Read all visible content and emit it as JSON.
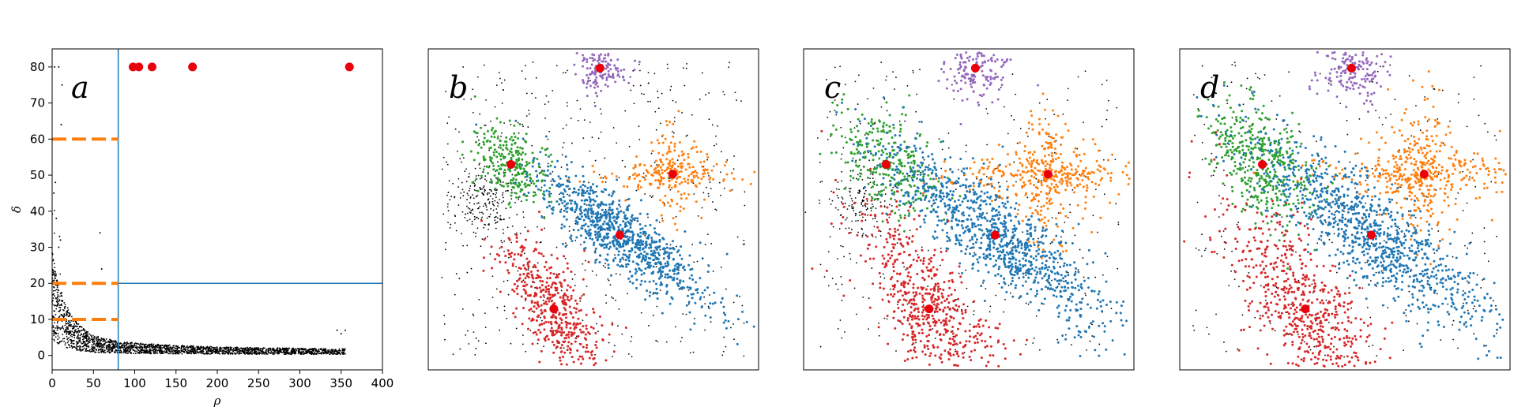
{
  "chart_data": [
    {
      "type": "scatter",
      "panel_label": "a",
      "xlabel": "ρ",
      "ylabel": "δ",
      "xlim": [
        0,
        400
      ],
      "ylim": [
        -4,
        85
      ],
      "xticks": [
        0,
        50,
        100,
        150,
        200,
        250,
        300,
        350,
        400
      ],
      "yticks": [
        0,
        10,
        20,
        30,
        40,
        50,
        60,
        70,
        80
      ],
      "grid": false,
      "series": [
        {
          "role": "cluster-centers",
          "color": "#e8000b",
          "points": [
            [
              98,
              80
            ],
            [
              105,
              80
            ],
            [
              121,
              80
            ],
            [
              170,
              80
            ],
            [
              360,
              80
            ]
          ]
        },
        {
          "role": "data-points",
          "color": "#000000",
          "description_shape": "dense band decaying from delta~20 at rho~0 to delta~1 at rho~355"
        }
      ],
      "reference_lines": [
        {
          "orientation": "vertical",
          "x": 80,
          "color": "#1f77b4"
        },
        {
          "orientation": "horizontal",
          "y": 20,
          "x_from": 80,
          "x_to": 400,
          "color": "#1f77b4"
        }
      ],
      "threshold_markers": [
        {
          "y": 60,
          "x_from": 0,
          "x_to": 80,
          "color": "#ff7f0e",
          "style": "dashed"
        },
        {
          "y": 20,
          "x_from": 0,
          "x_to": 80,
          "color": "#ff7f0e",
          "style": "dashed"
        },
        {
          "y": 10,
          "x_from": 0,
          "x_to": 80,
          "color": "#ff7f0e",
          "style": "dashed"
        }
      ]
    },
    {
      "type": "scatter",
      "panel_label": "b",
      "axes_visible": false,
      "centers": [
        [
          0.52,
          0.94
        ],
        [
          0.25,
          0.64
        ],
        [
          0.74,
          0.61
        ],
        [
          0.58,
          0.42
        ],
        [
          0.38,
          0.19
        ]
      ],
      "clusters": [
        {
          "color": "#9467bd",
          "center": [
            0.52,
            0.94
          ],
          "count": 130
        },
        {
          "color": "#2ca02c",
          "center": [
            0.25,
            0.64
          ],
          "count": 260
        },
        {
          "color": "#ff7f0e",
          "center": [
            0.74,
            0.61
          ],
          "count": 260
        },
        {
          "color": "#1f77b4",
          "center": [
            0.58,
            0.42
          ],
          "count": 900
        },
        {
          "color": "#d62728",
          "center": [
            0.38,
            0.19
          ],
          "count": 480
        }
      ],
      "noise_color": "#000000"
    },
    {
      "type": "scatter",
      "panel_label": "c",
      "axes_visible": false,
      "centers": [
        [
          0.52,
          0.94
        ],
        [
          0.25,
          0.64
        ],
        [
          0.74,
          0.61
        ],
        [
          0.58,
          0.42
        ],
        [
          0.38,
          0.19
        ]
      ],
      "clusters": [
        {
          "color": "#9467bd",
          "center": [
            0.52,
            0.94
          ],
          "count": 160
        },
        {
          "color": "#2ca02c",
          "center": [
            0.25,
            0.64
          ],
          "count": 300
        },
        {
          "color": "#ff7f0e",
          "center": [
            0.74,
            0.61
          ],
          "count": 420
        },
        {
          "color": "#1f77b4",
          "center": [
            0.58,
            0.42
          ],
          "count": 1000
        },
        {
          "color": "#d62728",
          "center": [
            0.38,
            0.19
          ],
          "count": 620
        }
      ],
      "noise_color": "#000000"
    },
    {
      "type": "scatter",
      "panel_label": "d",
      "axes_visible": false,
      "centers": [
        [
          0.52,
          0.94
        ],
        [
          0.25,
          0.64
        ],
        [
          0.74,
          0.61
        ],
        [
          0.58,
          0.42
        ],
        [
          0.38,
          0.19
        ]
      ],
      "clusters": [
        {
          "color": "#9467bd",
          "center": [
            0.52,
            0.94
          ],
          "count": 170
        },
        {
          "color": "#2ca02c",
          "center": [
            0.25,
            0.64
          ],
          "count": 460
        },
        {
          "color": "#ff7f0e",
          "center": [
            0.74,
            0.61
          ],
          "count": 480
        },
        {
          "color": "#1f77b4",
          "center": [
            0.58,
            0.42
          ],
          "count": 1000
        },
        {
          "color": "#d62728",
          "center": [
            0.38,
            0.19
          ],
          "count": 640
        }
      ],
      "noise_color": "#000000"
    }
  ]
}
